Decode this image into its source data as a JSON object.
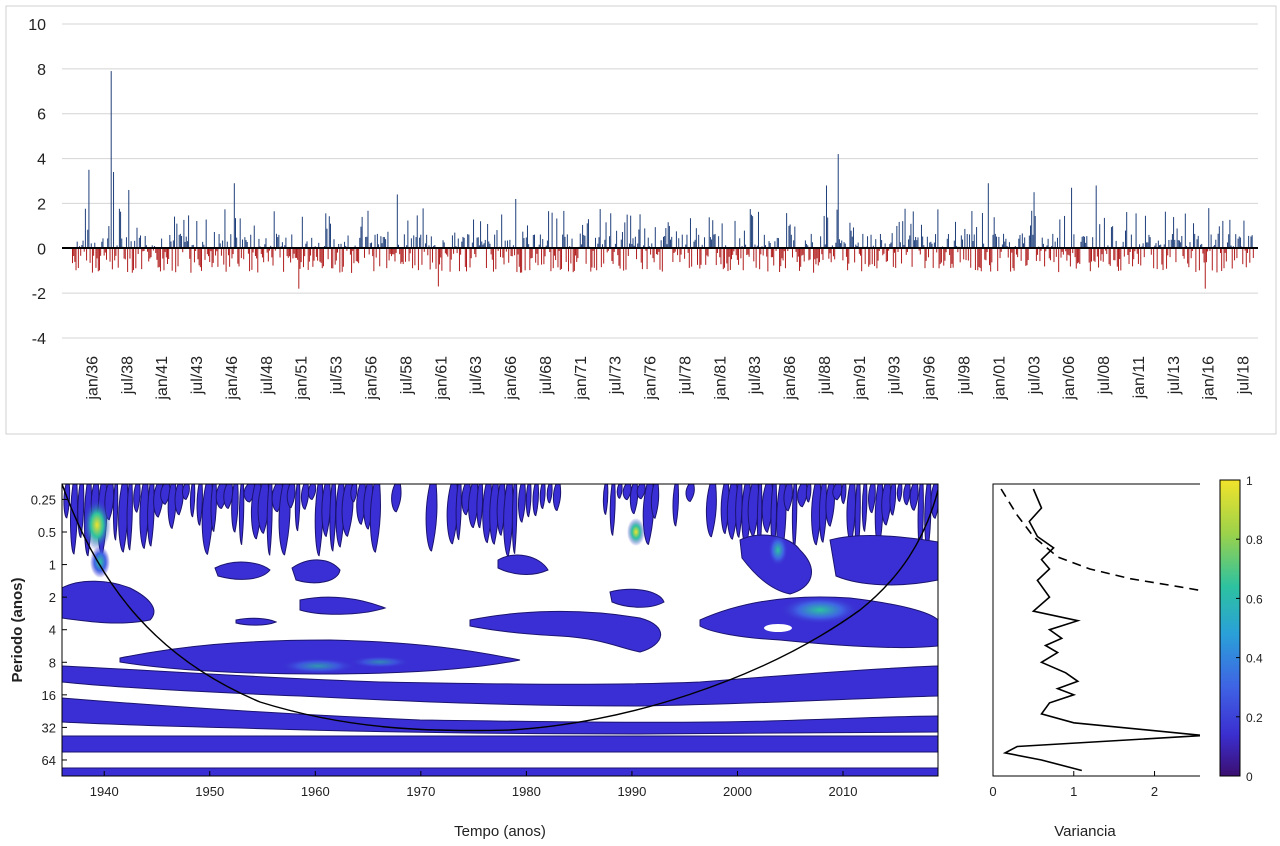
{
  "chart_data": [
    {
      "type": "bar",
      "title": "",
      "xlabel": "",
      "ylabel": "",
      "ylim": [
        -4,
        10
      ],
      "yticks": [
        "10",
        "8",
        "6",
        "4",
        "2",
        "0",
        "-2",
        "-4"
      ],
      "grid": true,
      "colors": {
        "positive": "#1f3f7a",
        "negative": "#b01c1c"
      },
      "x_tick_labels": [
        "jan/36",
        "jul/38",
        "jan/41",
        "jul/43",
        "jan/46",
        "jul/48",
        "jan/51",
        "jul/53",
        "jan/56",
        "jul/58",
        "jan/61",
        "jul/63",
        "jan/66",
        "jul/68",
        "jan/71",
        "jul/73",
        "jan/76",
        "jul/78",
        "jan/81",
        "jul/83",
        "jan/86",
        "jul/88",
        "jan/91",
        "jul/93",
        "jan/96",
        "jul/98",
        "jan/01",
        "jul/03",
        "jan/06",
        "jul/08",
        "jan/11",
        "jul/13",
        "jan/16",
        "jul/18"
      ],
      "date_range": [
        "jan/36",
        "dec/19"
      ],
      "notable_values": [
        {
          "date": "mar/37",
          "value": 3.5
        },
        {
          "date": "oct/38",
          "value": 7.9
        },
        {
          "date": "dec/38",
          "value": 3.4
        },
        {
          "date": "jan/40",
          "value": 2.6
        },
        {
          "date": "jul/47",
          "value": 2.9
        },
        {
          "date": "feb/59",
          "value": 2.4
        },
        {
          "date": "jul/67",
          "value": 2.2
        },
        {
          "date": "aug/89",
          "value": 2.8
        },
        {
          "date": "jun/90",
          "value": 4.2
        },
        {
          "date": "feb/01",
          "value": 2.9
        },
        {
          "date": "may/04",
          "value": 2.5
        },
        {
          "date": "jan/07",
          "value": 2.7
        },
        {
          "date": "oct/08",
          "value": 2.8
        },
        {
          "date": "feb/52",
          "value": -1.8
        },
        {
          "date": "jan/62",
          "value": -1.7
        },
        {
          "date": "jul/16",
          "value": -1.8
        }
      ]
    },
    {
      "type": "heatmap",
      "title": "",
      "xlabel": "Tempo (anos)",
      "ylabel": "Periodo (anos)",
      "xlim": [
        1936,
        2019
      ],
      "x_ticks": [
        "1940",
        "1950",
        "1960",
        "1970",
        "1980",
        "1990",
        "2000",
        "2010"
      ],
      "y_scale": "log2",
      "y_ticks": [
        "0.25",
        "0.5",
        "1",
        "2",
        "4",
        "8",
        "16",
        "32",
        "64"
      ],
      "cone_of_influence": true,
      "hotspots": [
        {
          "year": 1939,
          "period": 0.5,
          "power": 1.0
        },
        {
          "year": 1940,
          "period": 1,
          "power": 0.6
        },
        {
          "year": 1990,
          "period": 0.6,
          "power": 0.8
        },
        {
          "year": 2008,
          "period": 3,
          "power": 0.5
        }
      ]
    },
    {
      "type": "line",
      "title": "",
      "xlabel": "Variancia",
      "ylabel": "",
      "xlim": [
        0,
        2.6
      ],
      "x_ticks": [
        "0",
        "1",
        "2"
      ],
      "y_scale": "log2",
      "series": [
        {
          "style": "solid",
          "points": [
            [
              0.5,
              0.2
            ],
            [
              0.6,
              0.3
            ],
            [
              0.45,
              0.4
            ],
            [
              0.55,
              0.55
            ],
            [
              0.75,
              0.7
            ],
            [
              0.6,
              0.9
            ],
            [
              0.7,
              1.1
            ],
            [
              0.55,
              1.4
            ],
            [
              0.7,
              2.0
            ],
            [
              0.5,
              2.7
            ],
            [
              1.05,
              3.3
            ],
            [
              0.7,
              4.0
            ],
            [
              0.85,
              4.8
            ],
            [
              0.65,
              5.6
            ],
            [
              0.8,
              6.5
            ],
            [
              0.6,
              8.0
            ],
            [
              0.9,
              10
            ],
            [
              1.05,
              12
            ],
            [
              0.8,
              14
            ],
            [
              1.0,
              16
            ],
            [
              0.7,
              19
            ],
            [
              0.6,
              24
            ],
            [
              1.0,
              29
            ],
            [
              2.6,
              38
            ],
            [
              0.3,
              48
            ],
            [
              0.15,
              55
            ],
            [
              0.6,
              64
            ],
            [
              1.1,
              80
            ]
          ]
        },
        {
          "style": "dashed",
          "points": [
            [
              0.1,
              0.2
            ],
            [
              0.3,
              0.35
            ],
            [
              0.5,
              0.55
            ],
            [
              0.8,
              0.85
            ],
            [
              1.2,
              1.1
            ],
            [
              1.7,
              1.35
            ],
            [
              2.3,
              1.6
            ],
            [
              2.6,
              1.75
            ]
          ]
        }
      ]
    },
    {
      "type": "colorbar",
      "range": [
        0,
        1
      ],
      "ticks": [
        "1",
        "0.8",
        "0.6",
        "0.4",
        "0.2",
        "0"
      ],
      "colormap": [
        "#3b0f70",
        "#3b2fd0",
        "#3f63e4",
        "#2aa0d8",
        "#2dc2a0",
        "#9cd24a",
        "#f1e32b"
      ]
    }
  ]
}
